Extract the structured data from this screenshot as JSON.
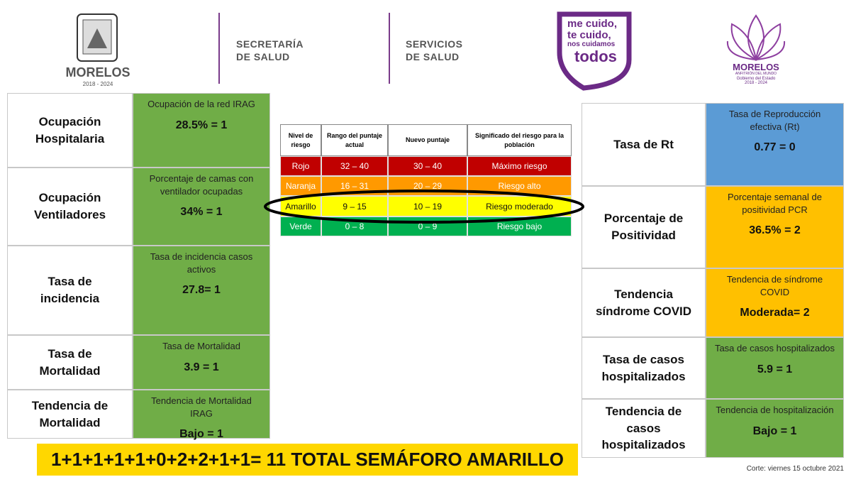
{
  "header": {
    "state_logo": {
      "name": "MORELOS",
      "years": "2018 - 2024"
    },
    "secretaria": [
      "SECRETARÍA",
      "DE SALUD"
    ],
    "servicios": [
      "SERVICIOS",
      "DE SALUD"
    ],
    "campaign": [
      "me cuido,",
      "te cuido,",
      "nos cuidamos",
      "todos"
    ],
    "government_logo": {
      "name": "MORELOS",
      "motto": "ANFITRIÓN DEL MUNDO",
      "line": "Gobierno del Estado",
      "years": "2018 - 2024"
    }
  },
  "left_table": {
    "color": "#70ad47",
    "rows": [
      {
        "label": "Ocupación Hospitalaria",
        "indicator": "Ocupación de la red IRAG",
        "value": "28.5% = 1"
      },
      {
        "label": "Ocupación Ventiladores",
        "indicator": "Porcentaje de camas con ventilador ocupadas",
        "value": "34%   = 1"
      },
      {
        "label": "Tasa de incidencia",
        "indicator": "Tasa de incidencia casos activos",
        "value": "27.8=  1"
      },
      {
        "label": "Tasa de Mortalidad",
        "indicator": "Tasa de Mortalidad",
        "value": "3.9 =  1"
      },
      {
        "label": "Tendencia de Mortalidad",
        "indicator": "Tendencia de Mortalidad IRAG",
        "value": "Bajo = 1"
      }
    ]
  },
  "risk_table": {
    "columns": [
      "Nivel de riesgo",
      "Rango del puntaje actual",
      "Nuevo puntaje",
      "Significado del riesgo para la población"
    ],
    "rows": [
      {
        "color": "#c00000",
        "cells": [
          "Rojo",
          "32 – 40",
          "30 – 40",
          "Máximo riesgo"
        ]
      },
      {
        "color": "#ff9900",
        "cells": [
          "Naranja",
          "16 – 31",
          "20 – 29",
          "Riesgo alto"
        ]
      },
      {
        "color": "#ffff00",
        "cells": [
          "Amarillo",
          "9 – 15",
          "10 – 19",
          "Riesgo moderado"
        ]
      },
      {
        "color": "#00b050",
        "cells": [
          "Verde",
          "0 – 8",
          "0 – 9",
          "Riesgo bajo"
        ]
      }
    ]
  },
  "right_table": {
    "rows": [
      {
        "color": "#5b9bd5",
        "label": "Tasa de Rt",
        "indicator": "Tasa de Reproducción efectiva (Rt)",
        "value": "0.77 =  0"
      },
      {
        "color": "#ffc000",
        "label": "Porcentaje de Positividad",
        "indicator": "Porcentaje semanal de positividad PCR",
        "value": "36.5% = 2"
      },
      {
        "color": "#ffc000",
        "label": "Tendencia síndrome COVID",
        "indicator": "Tendencia de síndrome COVID",
        "value": "Moderada= 2"
      },
      {
        "color": "#70ad47",
        "label": "Tasa de casos hospitalizados",
        "indicator": "Tasa de casos hospitalizados",
        "value": "5.9 =  1"
      },
      {
        "color": "#70ad47",
        "label": "Tendencia de casos hospitalizados",
        "indicator": "Tendencia de hospitalización",
        "value": "Bajo = 1"
      }
    ]
  },
  "footer": {
    "total": "1+1+1+1+1+0+2+2+1+1= 11 TOTAL SEMÁFORO AMARILLO",
    "date": "Corte: viernes 15 octubre 2021"
  }
}
